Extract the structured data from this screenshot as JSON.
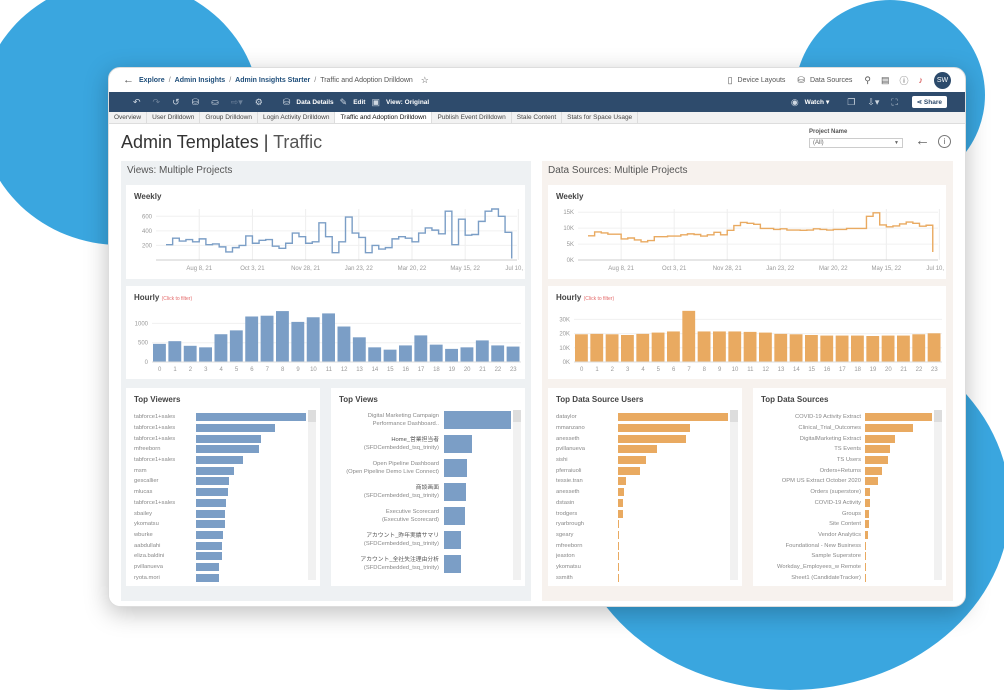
{
  "breadcrumb": {
    "items": [
      "Explore",
      "Admin Insights",
      "Admin Insights Starter"
    ],
    "current": "Traffic and Adoption Drilldown"
  },
  "topbar": {
    "device_layouts": "Device Layouts",
    "data_sources": "Data Sources",
    "avatar": "SW"
  },
  "toolbar": {
    "data_details": "Data Details",
    "edit": "Edit",
    "view": "View: Original",
    "watch": "Watch",
    "share": "Share"
  },
  "tabs": [
    {
      "label": "Overview"
    },
    {
      "label": "User Drilldown"
    },
    {
      "label": "Group Drilldown"
    },
    {
      "label": "Login Activity Drilldown"
    },
    {
      "label": "Traffic and Adoption Drilldown",
      "active": true
    },
    {
      "label": "Publish Event Drilldown"
    },
    {
      "label": "Stale Content"
    },
    {
      "label": "Stats for Space Usage"
    }
  ],
  "page": {
    "title": "Admin Templates",
    "subtitle": "Traffic",
    "filter_label": "Project Name",
    "filter_value": "(All)"
  },
  "colors": {
    "views": "#7b9ec6",
    "sources": "#e9aa61",
    "toolbar": "#2e4b6c",
    "blob": "#3aa6df"
  },
  "views_panel": {
    "title": "Views: Multiple Projects",
    "weekly_title": "Weekly",
    "hourly_title": "Hourly",
    "hourly_hint": "(Click to filter)",
    "top_viewers_title": "Top Viewers",
    "top_views_title": "Top Views"
  },
  "sources_panel": {
    "title": "Data Sources: Multiple Projects",
    "weekly_title": "Weekly",
    "hourly_title": "Hourly",
    "hourly_hint": "(Click to filter)",
    "users_title": "Top Data Source Users",
    "sources_title": "Top Data Sources"
  },
  "chart_data": [
    {
      "type": "line",
      "id": "views-weekly",
      "title": "Weekly",
      "x_ticks": [
        "Aug 8, 21",
        "Oct 3, 21",
        "Nov 28, 21",
        "Jan 23, 22",
        "Mar 20, 22",
        "May 15, 22",
        "Jul 10, 22"
      ],
      "y_ticks": [
        200,
        400,
        600
      ],
      "ylim": [
        0,
        700
      ],
      "x_start": "Jul 4, 21",
      "step": "weekly",
      "values": [
        210,
        300,
        260,
        280,
        250,
        290,
        210,
        220,
        180,
        110,
        170,
        200,
        330,
        230,
        270,
        280,
        190,
        160,
        230,
        370,
        320,
        230,
        250,
        510,
        320,
        100,
        250,
        590,
        370,
        310,
        100,
        200,
        150,
        170,
        290,
        320,
        300,
        250,
        370,
        440,
        410,
        360,
        670,
        210,
        560,
        340,
        350,
        530,
        670,
        700,
        600,
        380,
        20
      ]
    },
    {
      "type": "bar",
      "id": "views-hourly",
      "title": "Hourly",
      "categories": [
        "0",
        "1",
        "2",
        "3",
        "4",
        "5",
        "6",
        "7",
        "8",
        "9",
        "10",
        "11",
        "12",
        "13",
        "14",
        "15",
        "16",
        "17",
        "18",
        "19",
        "20",
        "21",
        "22",
        "23"
      ],
      "y_ticks": [
        0,
        500,
        1000
      ],
      "ylim": [
        0,
        1400
      ],
      "values": [
        470,
        540,
        420,
        380,
        720,
        820,
        1180,
        1200,
        1320,
        1040,
        1160,
        1260,
        920,
        640,
        380,
        320,
        430,
        690,
        450,
        340,
        380,
        560,
        430,
        400
      ]
    },
    {
      "type": "line",
      "id": "sources-weekly",
      "title": "Weekly",
      "x_ticks": [
        "Aug 8, 21",
        "Oct 3, 21",
        "Nov 28, 21",
        "Jan 23, 22",
        "Mar 20, 22",
        "May 15, 22",
        "Jul 10, 22"
      ],
      "y_ticks": [
        "0K",
        "5K",
        "10K",
        "15K"
      ],
      "ylim": [
        0,
        16000
      ],
      "x_start": "Jul 4, 21",
      "step": "weekly",
      "values": [
        7600,
        8800,
        8500,
        8100,
        8100,
        6600,
        6900,
        6300,
        5700,
        6100,
        7300,
        7300,
        7500,
        7500,
        7900,
        8200,
        8000,
        7500,
        7900,
        8700,
        7900,
        9300,
        10800,
        11800,
        11500,
        11200,
        9900,
        9900,
        9600,
        9800,
        9400,
        9400,
        9300,
        9400,
        9800,
        9600,
        9400,
        9600,
        9600,
        9900,
        9900,
        9900,
        13700,
        14800,
        11000,
        10400,
        10700,
        11300,
        11900,
        11500,
        10600,
        10900,
        2500
      ]
    },
    {
      "type": "bar",
      "id": "sources-hourly",
      "title": "Hourly",
      "categories": [
        "0",
        "1",
        "2",
        "3",
        "4",
        "5",
        "6",
        "7",
        "8",
        "9",
        "10",
        "11",
        "12",
        "13",
        "14",
        "15",
        "16",
        "17",
        "18",
        "19",
        "20",
        "21",
        "22",
        "23"
      ],
      "y_ticks": [
        "0K",
        "10K",
        "20K",
        "30K"
      ],
      "ylim": [
        0,
        38000
      ],
      "values": [
        19500,
        19800,
        19500,
        19000,
        19800,
        20700,
        21500,
        36000,
        21500,
        21500,
        21500,
        21200,
        20700,
        19800,
        19500,
        19000,
        18600,
        18600,
        18600,
        18300,
        18600,
        18600,
        19500,
        20200
      ]
    },
    {
      "type": "bar",
      "id": "top-viewers",
      "orientation": "horizontal",
      "title": "Top Viewers",
      "categories": [
        "tabforce1+sales",
        "tabforce1+sales",
        "tabforce1+sales",
        "mfreeborn",
        "tabforce1+sales",
        "msm",
        "gescallier",
        "mlucas",
        "tabforce1+sales",
        "sbailey",
        "ykomatsu",
        "wburke",
        "aabdullahi",
        "eliza.baldini",
        "pvillanueva",
        "ryota.mori"
      ],
      "values": [
        312,
        225,
        183,
        178,
        132,
        107,
        94,
        91,
        84,
        82,
        82,
        76,
        75,
        75,
        65,
        65
      ]
    },
    {
      "type": "bar",
      "id": "top-views",
      "orientation": "horizontal",
      "title": "Top Views",
      "categories": [
        [
          "Digital Marketing Campaign",
          "Performance Dashboard.."
        ],
        [
          "Home_営業担当者",
          "(SFDCembedded_tsq_trinity)"
        ],
        [
          "Open Pipeline Dashboard",
          "(Open Pipeline Demo Live Connect)"
        ],
        [
          "商談画面",
          "(SFDCembedded_tsq_trinity)"
        ],
        [
          "Executive Scorecard",
          "(Executive Scorecard)"
        ],
        [
          "アカウント_昨年実績サマリ",
          "(SFDCembedded_tsq_trinity)"
        ],
        [
          "アカウント_全社失注理由分析",
          "(SFDCembedded_tsq_trinity)"
        ]
      ],
      "values": [
        185,
        78,
        63,
        61,
        58,
        46,
        46
      ]
    },
    {
      "type": "bar",
      "id": "top-ds-users",
      "orientation": "horizontal",
      "title": "Top Data Source Users",
      "categories": [
        "dataylor",
        "mmanzano",
        "anesseth",
        "pvillanueva",
        "sishi",
        "pferraiuoli",
        "tessie.tran",
        "anesseth",
        "dstasin",
        "trodgers",
        "ryarbrough",
        "sgeary",
        "mfreeborn",
        "jeaston",
        "ykomatsu",
        "ssmith"
      ],
      "values": [
        312,
        203,
        193,
        110,
        80,
        63,
        23,
        17,
        13,
        13,
        4,
        4,
        4,
        2,
        2,
        2
      ]
    },
    {
      "type": "bar",
      "id": "top-ds",
      "orientation": "horizontal",
      "title": "Top Data Sources",
      "categories": [
        "COVID-19 Activity Extract",
        "Clinical_Trial_Outcomes",
        "DigitalMarketing Extract",
        "TS Events",
        "TS Users",
        "Orders+Returns",
        "OPM US Extract October 2020",
        "Orders (superstore)",
        "COVID-19 Activity",
        "Groups",
        "Site Content",
        "Vendor Analytics",
        "Foundational - New Business",
        "Sample Superstore",
        "Workday_Employees_w Remote",
        "Sheet1 (CandidateTracker)"
      ],
      "values": [
        185,
        133,
        82,
        68,
        63,
        48,
        36,
        15,
        13,
        11,
        11,
        9,
        3,
        3,
        2,
        2
      ]
    }
  ]
}
